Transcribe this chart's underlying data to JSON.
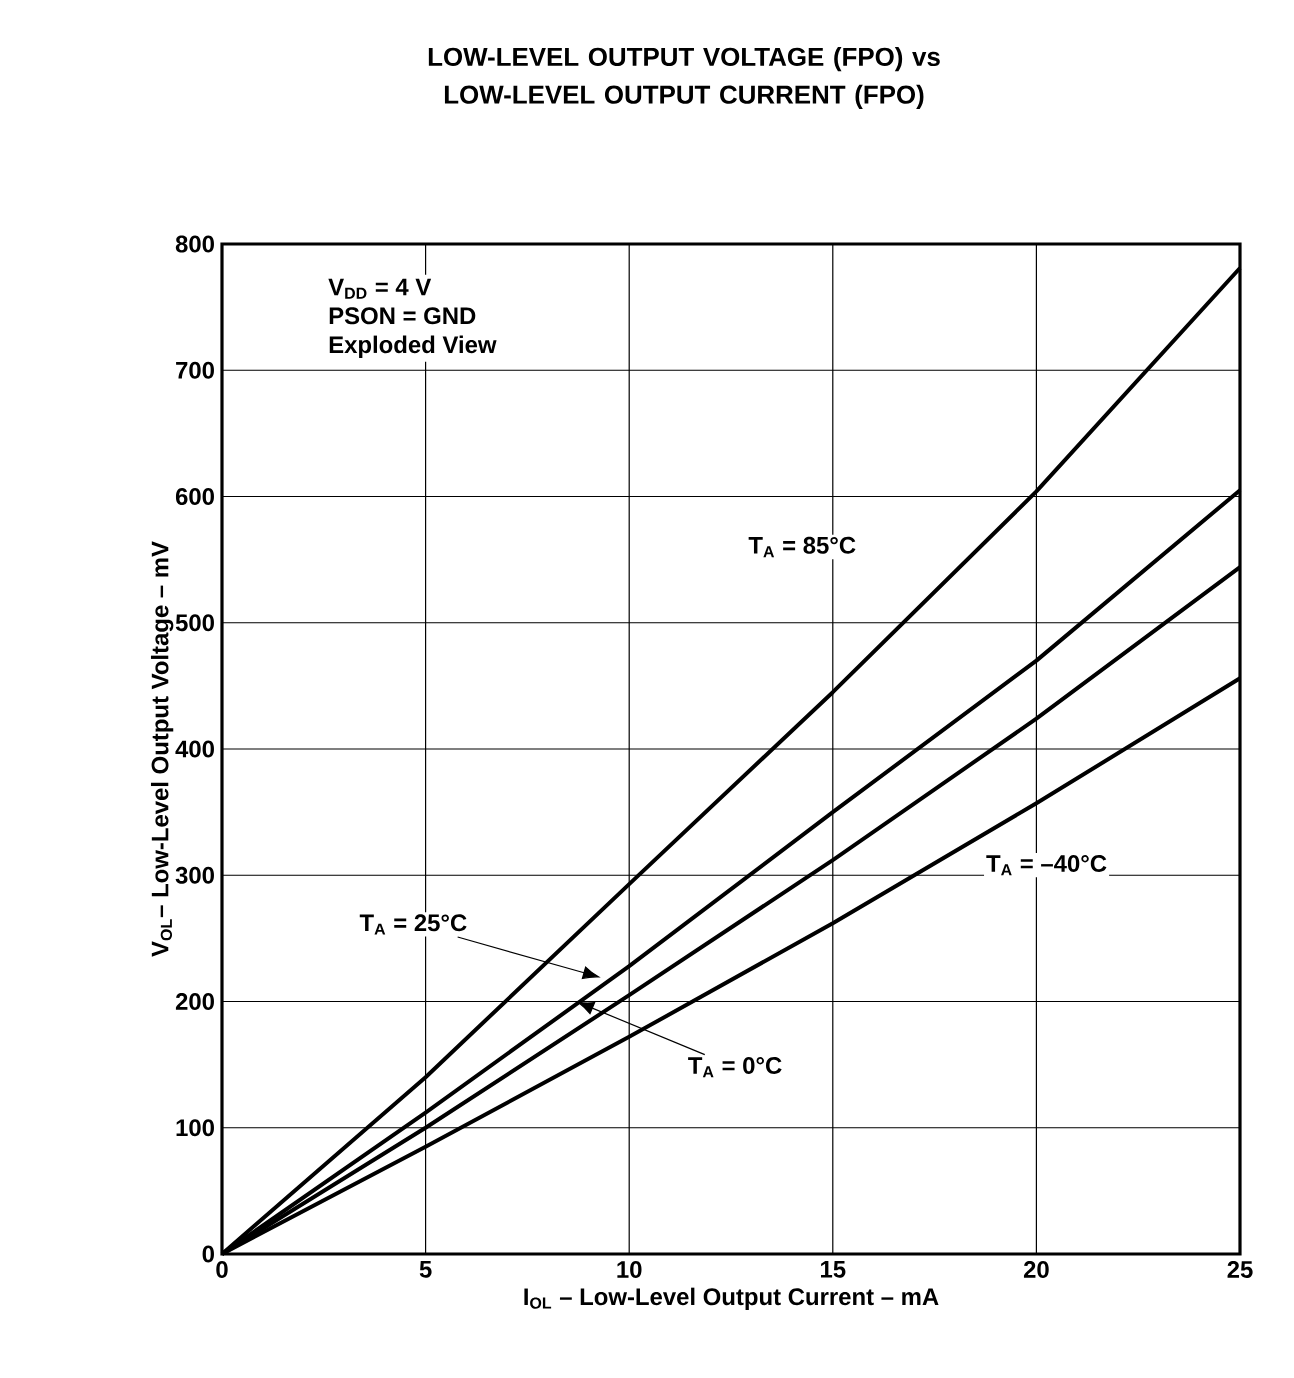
{
  "chart_data": {
    "type": "line",
    "title": "LOW-LEVEL OUTPUT VOLTAGE (FPO) vs LOW-LEVEL OUTPUT CURRENT (FPO)",
    "xlabel": "I$_{OL}$ – Low-Level Output Current – mA",
    "ylabel": "V$_{OL}$– Low-Level Output Voltage – mV",
    "x": [
      0,
      5,
      10,
      15,
      20,
      25
    ],
    "series": [
      {
        "color": "#000000",
        "values": [
          0,
          140,
          293,
          445,
          604,
          781
        ]
      },
      {
        "color": "#000000",
        "values": [
          0,
          112,
          228,
          350,
          470,
          605
        ]
      },
      {
        "color": "#000000",
        "values": [
          0,
          100,
          205,
          312,
          424,
          544
        ]
      },
      {
        "color": "#000000",
        "values": [
          0,
          85,
          172,
          262,
          357,
          456
        ]
      }
    ],
    "xlim": [
      0,
      25
    ],
    "ylim": [
      0,
      800
    ],
    "xticks": [
      0,
      5,
      10,
      15,
      20,
      25
    ],
    "yticks": [
      0,
      100,
      200,
      300,
      400,
      500,
      600,
      700,
      800
    ],
    "grid": true,
    "annotations": [
      "V$_{DD}$ = 4 V",
      "PSON = GND",
      "Exploded View",
      "T$_{A}$ = 85°C",
      {
        "text": "T$_{A}$ = 25°C",
        "x": 9.3,
        "y": 219
      },
      {
        "text": "T$_{A}$ = 0°C",
        "x": 8.7,
        "y": 200
      },
      "T$_{A}$ = –40°C"
    ]
  }
}
